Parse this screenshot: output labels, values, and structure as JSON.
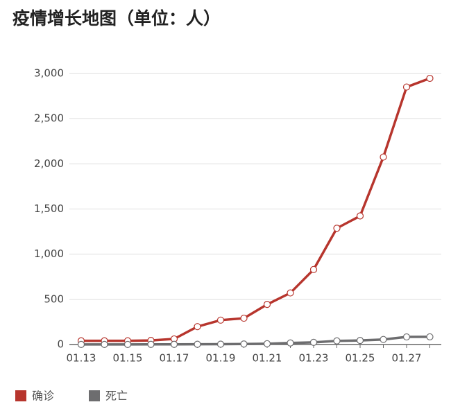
{
  "chart_data": {
    "type": "line",
    "title": "疫情增长地图（单位：人）",
    "categories": [
      "01.13",
      null,
      "01.15",
      null,
      "01.17",
      null,
      "01.19",
      null,
      "01.21",
      null,
      "01.23",
      null,
      "01.25",
      null,
      "01.27",
      null
    ],
    "series": [
      {
        "name": "确诊",
        "color": "#b7352d",
        "values": [
          41,
          41,
          41,
          45,
          62,
          198,
          270,
          291,
          444,
          571,
          830,
          1287,
          1423,
          2075,
          2850,
          2946
        ]
      },
      {
        "name": "死亡",
        "color": "#6d6d6f",
        "values": [
          1,
          1,
          1,
          2,
          2,
          3,
          4,
          6,
          9,
          17,
          24,
          40,
          45,
          56,
          84,
          85
        ]
      }
    ],
    "ylim": [
      0,
      3000
    ],
    "yticks": [
      0,
      500,
      {
        "value": 1000,
        "label": "1,000"
      },
      {
        "value": 1500,
        "label": "1,500"
      },
      {
        "value": 2000,
        "label": "2,000"
      },
      {
        "value": 2500,
        "label": "2,500"
      },
      {
        "value": 3000,
        "label": "3,000"
      }
    ],
    "grid": true,
    "legend": "bottom-left"
  }
}
